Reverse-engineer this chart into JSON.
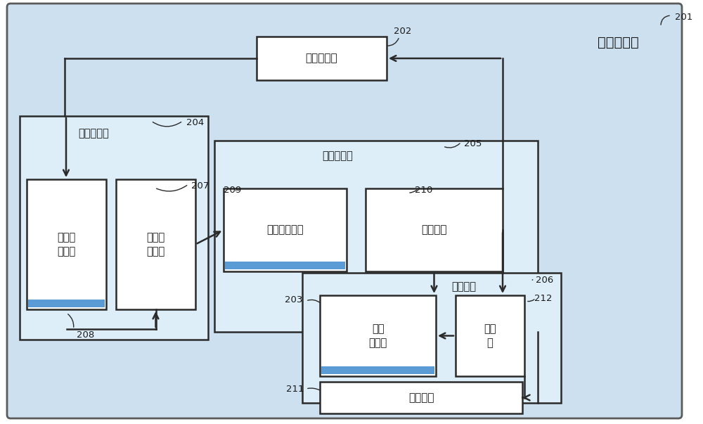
{
  "fig_w": 10.0,
  "fig_h": 6.03,
  "dpi": 100,
  "bg_outer": "#cce0f0",
  "bg_white": "#ffffff",
  "edge_dark": "#2a2a2a",
  "blue_stripe": "#5b9bd5",
  "text_dark": "#1a1a1a",
  "outer_label": "无人飞行器",
  "outer_id": "201",
  "camera_label": "高清摄像头",
  "camera_id": "202",
  "data_recv_label": "数据接收器",
  "data_recv_id": "204",
  "video_label": "视频接\n收模块",
  "wireless_rcv_label": "无线接\n收模块",
  "wireless_rcv_id": "207",
  "info_proc_label": "信息处理器",
  "info_proc_id": "205",
  "voice_label": "语音合成模块",
  "voice_id": "209",
  "ctrl_label": "控制模块",
  "ctrl_id": "210",
  "storage_label": "收纳机构",
  "storage_id": "206",
  "collector_label": "无线\n集音器",
  "collector_id": "203",
  "clamp_label": "夹持\n器",
  "clamp_id": "212",
  "slide_label": "滑动开口",
  "slide_id": "211",
  "link208": "208"
}
